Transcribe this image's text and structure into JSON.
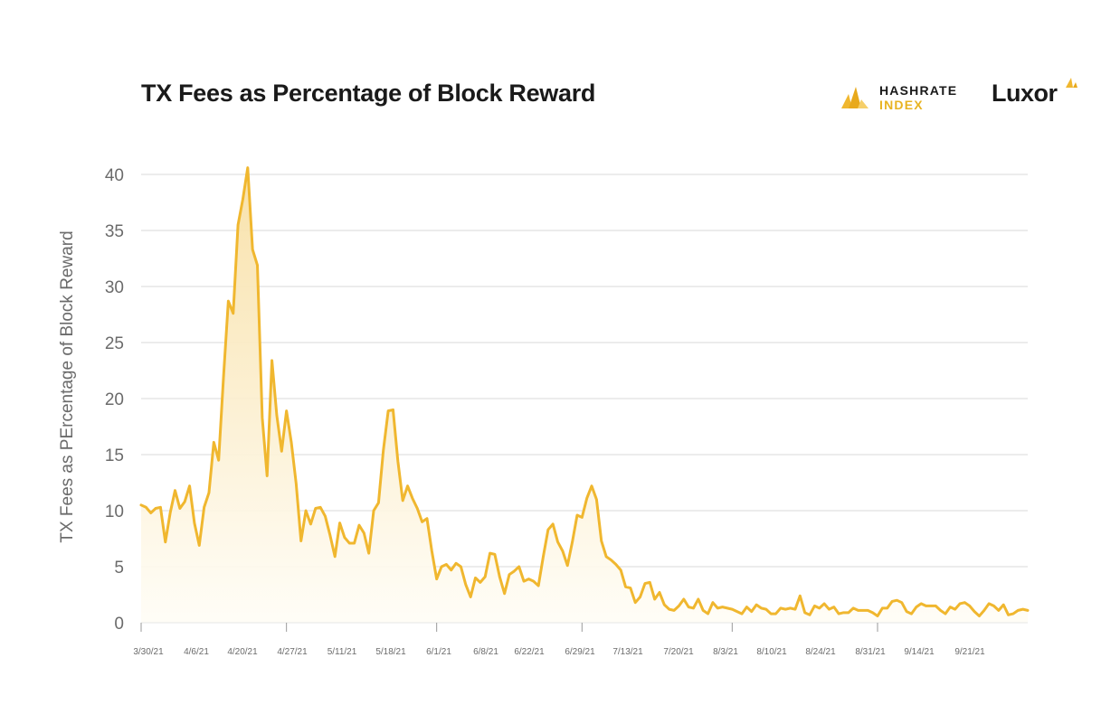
{
  "header": {
    "title": "TX Fees as Percentage of Block Reward",
    "brand_line1": "HASHRATE",
    "brand_line2": "INDEX",
    "brand2": "Luxor"
  },
  "colors": {
    "line": "#f0b72f",
    "fill_top": "#f8e4b1",
    "fill_bottom": "#fffdf6",
    "grid": "#d9d9d9",
    "text": "#6b6b6b"
  },
  "chart_data": {
    "type": "area",
    "title": "TX Fees as Percentage of Block Reward",
    "xlabel": "",
    "ylabel": "TX Fees as PErcentage of Block Reward",
    "ylim": [
      0,
      40
    ],
    "yticks": [
      0,
      5,
      10,
      15,
      20,
      25,
      30,
      35,
      40
    ],
    "grid": true,
    "x_tick_labels": [
      "3/30/21",
      "4/6/21",
      "4/20/21",
      "4/27/21",
      "5/11/21",
      "5/18/21",
      "6/1/21",
      "6/8/21",
      "6/22/21",
      "6/29/21",
      "7/13/21",
      "7/20/21",
      "8/3/21",
      "8/10/21",
      "8/24/21",
      "8/31/21",
      "9/14/21",
      "9/21/21"
    ],
    "series": [
      {
        "name": "TX Fees as Percentage of Block Reward",
        "values": [
          10.5,
          10.3,
          9.8,
          10.2,
          10.3,
          7.2,
          9.8,
          11.8,
          10.2,
          10.8,
          12.2,
          8.9,
          6.9,
          10.3,
          11.6,
          16.1,
          14.5,
          21.9,
          28.7,
          27.6,
          35.5,
          37.8,
          40.6,
          33.3,
          31.9,
          18.3,
          13.1,
          23.4,
          18.5,
          15.3,
          18.9,
          16.1,
          12.4,
          7.3,
          10.0,
          8.8,
          10.2,
          10.3,
          9.5,
          7.8,
          5.9,
          8.9,
          7.6,
          7.1,
          7.1,
          8.7,
          8.0,
          6.2,
          10.0,
          10.7,
          15.4,
          18.9,
          19.0,
          14.4,
          10.9,
          12.2,
          11.1,
          10.2,
          9.0,
          9.3,
          6.4,
          3.9,
          5.0,
          5.2,
          4.7,
          5.3,
          5.0,
          3.4,
          2.3,
          4.0,
          3.6,
          4.1,
          6.2,
          6.1,
          4.1,
          2.6,
          4.3,
          4.6,
          5.0,
          3.7,
          3.9,
          3.7,
          3.3,
          5.9,
          8.3,
          8.8,
          7.2,
          6.4,
          5.1,
          7.2,
          9.6,
          9.4,
          11.1,
          12.2,
          11.0,
          7.3,
          5.9,
          5.6,
          5.2,
          4.7,
          3.2,
          3.1,
          1.8,
          2.3,
          3.5,
          3.6,
          2.1,
          2.7,
          1.6,
          1.2,
          1.1,
          1.5,
          2.1,
          1.4,
          1.3,
          2.1,
          1.1,
          0.8,
          1.8,
          1.3,
          1.4,
          1.3,
          1.2,
          1.0,
          0.8,
          1.4,
          1.0,
          1.6,
          1.3,
          1.2,
          0.8,
          0.8,
          1.3,
          1.2,
          1.3,
          1.2,
          2.4,
          0.9,
          0.7,
          1.5,
          1.3,
          1.7,
          1.2,
          1.4,
          0.8,
          0.9,
          0.9,
          1.3,
          1.1,
          1.1,
          1.1,
          0.9,
          0.6,
          1.3,
          1.3,
          1.9,
          2.0,
          1.8,
          1.0,
          0.8,
          1.4,
          1.7,
          1.5,
          1.5,
          1.5,
          1.1,
          0.8,
          1.4,
          1.2,
          1.7,
          1.8,
          1.5,
          1.0,
          0.6,
          1.1,
          1.7,
          1.5,
          1.1,
          1.6,
          0.7,
          0.8,
          1.1,
          1.2,
          1.1
        ]
      }
    ]
  }
}
